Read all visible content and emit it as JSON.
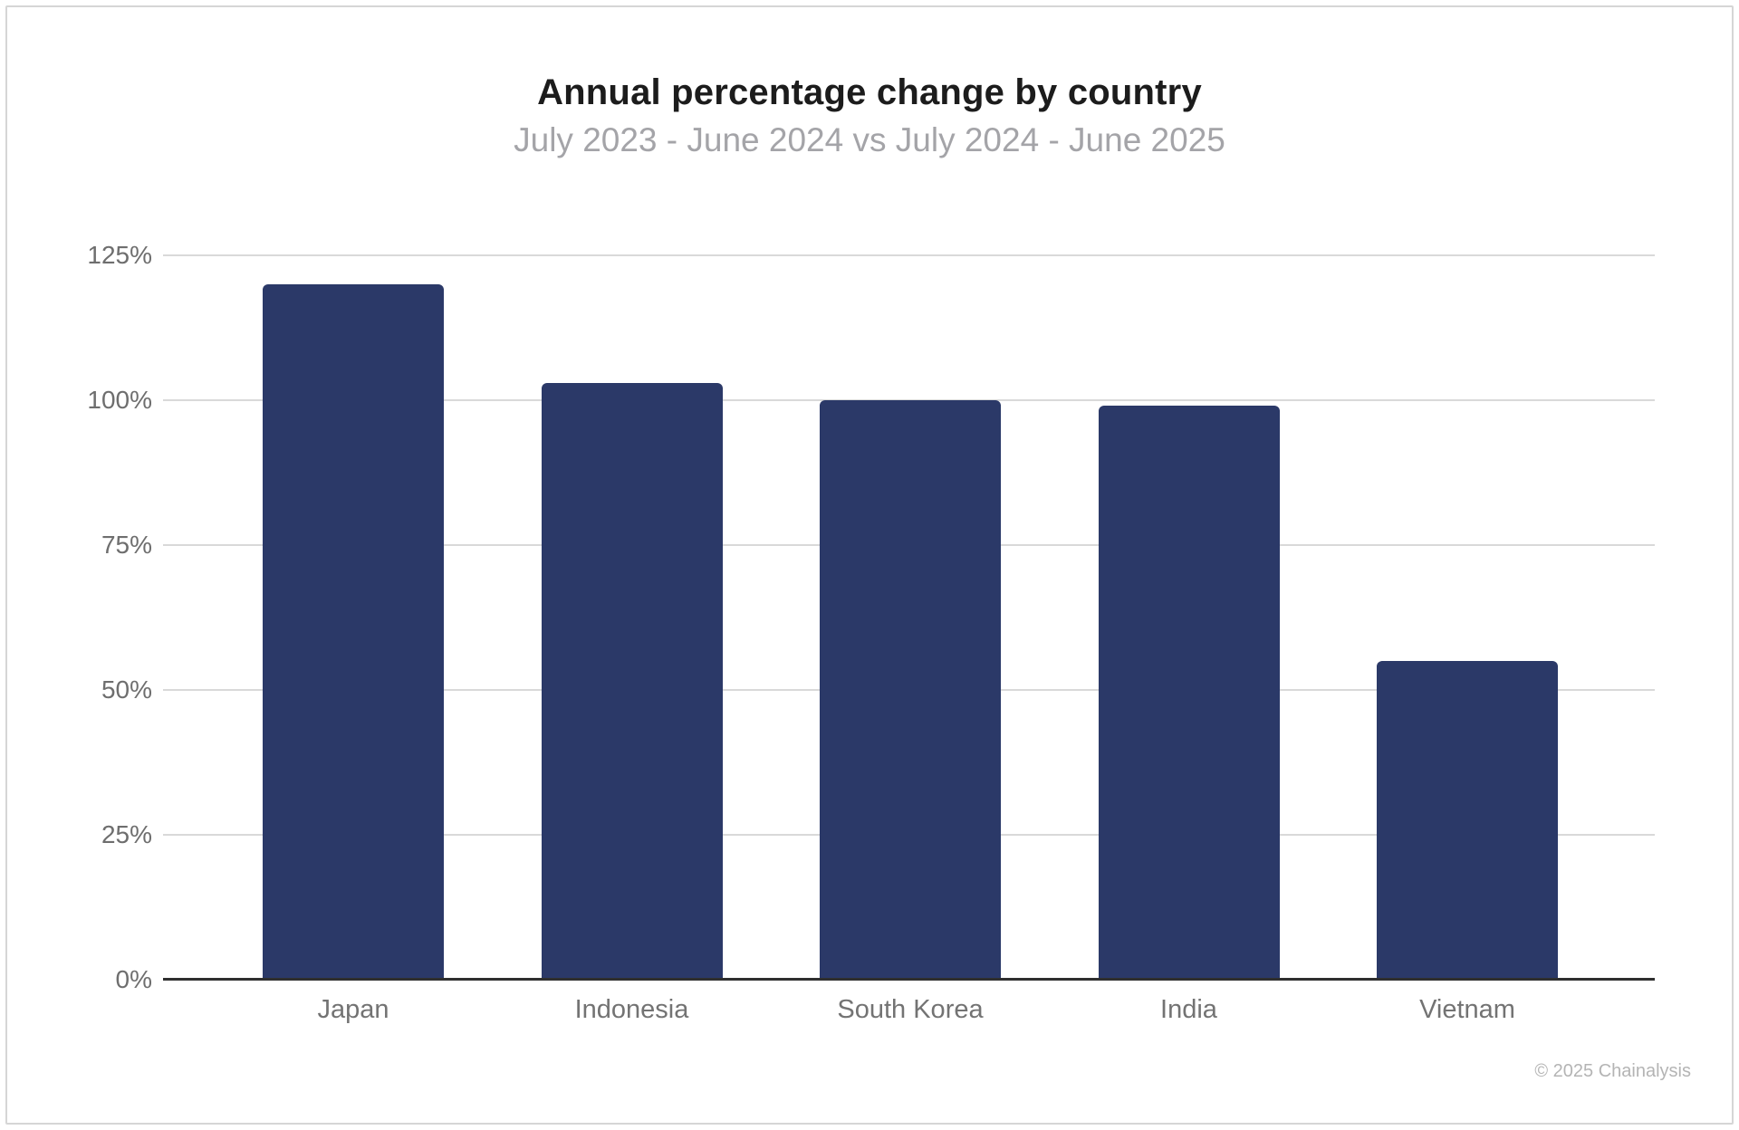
{
  "page": {
    "title": "Annual percentage change by country",
    "subtitle": "July 2023 - June 2024 vs July 2024 - June 2025",
    "footer": "© 2025 Chainalysis"
  },
  "colors": {
    "bar": "#2b3968",
    "title_text": "#1c1c1c",
    "subtitle_text": "#a4a4a8",
    "y_tick_text": "#6e6e6e",
    "x_label_text": "#737373",
    "gridline": "#d9d9d9",
    "axis_line": "#2f2f2f",
    "footer_text": "#b4b4b4",
    "frame_border": "#d6d6d6"
  },
  "chart_data": {
    "type": "bar",
    "title": "Annual percentage change by country",
    "subtitle": "July 2023 - June 2024 vs July 2024 - June 2025",
    "categories": [
      "Japan",
      "Indonesia",
      "South Korea",
      "India",
      "Vietnam"
    ],
    "values": [
      120,
      103,
      100,
      99,
      55
    ],
    "unit": "%",
    "xlabel": "",
    "ylabel": "",
    "ylim": [
      0,
      125
    ],
    "yticks": [
      0,
      25,
      50,
      75,
      100,
      125
    ],
    "ytick_labels": [
      "0%",
      "25%",
      "50%",
      "75%",
      "100%",
      "125%"
    ],
    "grid": "horizontal",
    "legend": "none",
    "bar_color": "#2b3968",
    "attribution": "© 2025 Chainalysis"
  }
}
